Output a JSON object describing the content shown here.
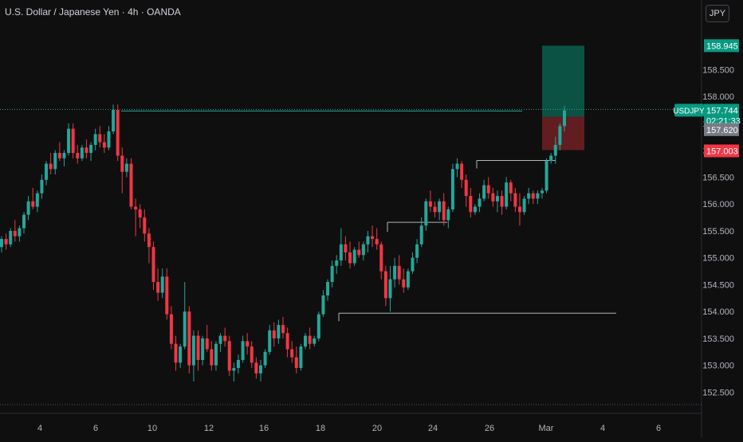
{
  "header": {
    "title": "U.S. Dollar / Japanese Yen · 4h · OANDA",
    "currency_button": "JPY"
  },
  "chart_data": {
    "type": "candlestick",
    "symbol": "USDJPY",
    "timeframe": "4h",
    "source": "OANDA",
    "x_tick_labels": [
      "4",
      "6",
      "10",
      "12",
      "16",
      "18",
      "20",
      "24",
      "26",
      "Mar",
      "4",
      "6"
    ],
    "y_tick_labels": [
      "158.500",
      "158.000",
      "157.500",
      "157.000",
      "156.500",
      "156.000",
      "155.500",
      "155.000",
      "154.500",
      "154.000",
      "153.500",
      "153.000",
      "152.500"
    ],
    "y_ticks": [
      158.5,
      158.0,
      157.5,
      157.0,
      156.5,
      156.0,
      155.5,
      155.0,
      154.5,
      154.0,
      153.5,
      153.0,
      152.5
    ],
    "ylim": [
      152.27,
      159.35
    ],
    "last_price": {
      "symbol": "USDJPY",
      "value": "157.744",
      "countdown": "02:21:33",
      "color": "#089981"
    },
    "price_labels": [
      {
        "value": "158.945",
        "color": "#089981",
        "role": "take-profit"
      },
      {
        "value": "157.620",
        "color": "#787b86",
        "role": "entry"
      },
      {
        "value": "157.003",
        "color": "#f23645",
        "role": "stop-loss"
      }
    ],
    "position_tool": {
      "entry": 157.62,
      "target": 158.945,
      "stop": 157.003,
      "profit_color": "#0b5a4a",
      "loss_color": "#6b1f24"
    },
    "horizontal_lines": [
      {
        "price": 157.76,
        "style": "dotted",
        "color": "#26a69a"
      },
      {
        "price": 157.73,
        "style": "solid",
        "color": "#26a69a"
      },
      {
        "price": 153.97,
        "style": "solid",
        "color": "#b2b5be"
      },
      {
        "price": 155.66,
        "style": "solid",
        "color": "#b2b5be"
      },
      {
        "price": 156.81,
        "style": "solid",
        "color": "#b2b5be"
      }
    ],
    "colors": {
      "up": "#26a69a",
      "down": "#f23645",
      "background": "#0f0f0f",
      "grid": "#1c1c1c"
    },
    "candles": [
      [
        155.2,
        155.4,
        155.1,
        155.35
      ],
      [
        155.35,
        155.45,
        155.15,
        155.25
      ],
      [
        155.25,
        155.55,
        155.2,
        155.5
      ],
      [
        155.5,
        155.7,
        155.3,
        155.4
      ],
      [
        155.4,
        155.6,
        155.3,
        155.55
      ],
      [
        155.55,
        155.85,
        155.45,
        155.8
      ],
      [
        155.8,
        156.15,
        155.7,
        156.05
      ],
      [
        156.05,
        156.3,
        155.9,
        155.95
      ],
      [
        155.95,
        156.25,
        155.85,
        156.2
      ],
      [
        156.2,
        156.55,
        156.1,
        156.45
      ],
      [
        156.45,
        156.8,
        156.35,
        156.75
      ],
      [
        156.75,
        156.95,
        156.55,
        156.65
      ],
      [
        156.65,
        157.0,
        156.55,
        156.95
      ],
      [
        156.95,
        157.15,
        156.8,
        156.85
      ],
      [
        156.85,
        157.0,
        156.7,
        156.95
      ],
      [
        156.95,
        157.5,
        156.9,
        157.4
      ],
      [
        157.4,
        157.5,
        156.85,
        156.95
      ],
      [
        156.95,
        157.1,
        156.75,
        156.85
      ],
      [
        156.85,
        157.1,
        156.8,
        157.05
      ],
      [
        157.05,
        157.2,
        156.85,
        156.95
      ],
      [
        156.95,
        157.15,
        156.8,
        157.1
      ],
      [
        157.1,
        157.4,
        157.0,
        157.3
      ],
      [
        157.3,
        157.45,
        157.05,
        157.15
      ],
      [
        157.15,
        157.3,
        156.95,
        157.05
      ],
      [
        157.05,
        157.45,
        157.0,
        157.35
      ],
      [
        157.35,
        157.85,
        157.3,
        157.75
      ],
      [
        157.75,
        157.85,
        156.8,
        156.9
      ],
      [
        156.9,
        157.05,
        156.2,
        156.6
      ],
      [
        156.6,
        156.85,
        156.5,
        156.75
      ],
      [
        156.75,
        156.85,
        155.9,
        155.95
      ],
      [
        155.95,
        156.1,
        155.4,
        155.9
      ],
      [
        155.9,
        156.0,
        155.55,
        155.75
      ],
      [
        155.75,
        155.9,
        155.3,
        155.45
      ],
      [
        155.45,
        155.55,
        154.9,
        155.2
      ],
      [
        155.2,
        155.3,
        154.4,
        154.55
      ],
      [
        154.55,
        154.8,
        154.2,
        154.35
      ],
      [
        154.35,
        154.8,
        154.25,
        154.65
      ],
      [
        154.65,
        154.8,
        153.85,
        153.95
      ],
      [
        153.95,
        154.1,
        153.3,
        153.4
      ],
      [
        153.4,
        153.55,
        152.9,
        153.05
      ],
      [
        153.05,
        153.4,
        152.95,
        153.35
      ],
      [
        153.35,
        154.55,
        153.3,
        154.0
      ],
      [
        154.0,
        154.1,
        152.85,
        153.0
      ],
      [
        153.0,
        153.65,
        152.7,
        153.55
      ],
      [
        153.55,
        153.65,
        152.9,
        153.1
      ],
      [
        153.1,
        153.55,
        153.0,
        153.5
      ],
      [
        153.5,
        153.75,
        153.25,
        153.3
      ],
      [
        153.3,
        153.45,
        152.9,
        153.0
      ],
      [
        153.0,
        153.45,
        152.9,
        153.4
      ],
      [
        153.4,
        153.6,
        153.25,
        153.55
      ],
      [
        153.55,
        153.7,
        153.35,
        153.45
      ],
      [
        153.45,
        153.55,
        152.8,
        152.9
      ],
      [
        152.9,
        153.05,
        152.7,
        152.95
      ],
      [
        152.95,
        153.2,
        152.85,
        153.1
      ],
      [
        153.1,
        153.55,
        153.05,
        153.45
      ],
      [
        153.45,
        153.6,
        153.2,
        153.35
      ],
      [
        153.35,
        153.45,
        152.95,
        153.05
      ],
      [
        153.05,
        153.15,
        152.75,
        152.85
      ],
      [
        152.85,
        153.1,
        152.7,
        153.0
      ],
      [
        153.0,
        153.3,
        152.95,
        153.25
      ],
      [
        153.25,
        153.75,
        153.2,
        153.65
      ],
      [
        153.65,
        153.8,
        153.35,
        153.5
      ],
      [
        153.5,
        153.85,
        153.4,
        153.75
      ],
      [
        153.75,
        153.9,
        153.5,
        153.6
      ],
      [
        153.6,
        153.7,
        153.15,
        153.3
      ],
      [
        153.3,
        153.45,
        153.05,
        153.15
      ],
      [
        153.15,
        153.35,
        152.85,
        152.95
      ],
      [
        152.95,
        153.4,
        152.9,
        153.35
      ],
      [
        153.35,
        153.6,
        153.3,
        153.55
      ],
      [
        153.55,
        153.7,
        153.3,
        153.4
      ],
      [
        153.4,
        153.55,
        153.35,
        153.5
      ],
      [
        153.5,
        154.0,
        153.45,
        153.95
      ],
      [
        153.95,
        154.4,
        153.9,
        154.3
      ],
      [
        154.3,
        154.6,
        154.2,
        154.55
      ],
      [
        154.55,
        154.95,
        154.45,
        154.85
      ],
      [
        154.85,
        155.05,
        154.7,
        154.95
      ],
      [
        154.95,
        155.55,
        154.85,
        155.25
      ],
      [
        155.25,
        155.4,
        154.95,
        155.1
      ],
      [
        155.1,
        155.3,
        154.8,
        154.9
      ],
      [
        154.9,
        155.2,
        154.85,
        155.15
      ],
      [
        155.15,
        155.3,
        155.0,
        155.05
      ],
      [
        155.05,
        155.3,
        154.95,
        155.25
      ],
      [
        155.25,
        155.5,
        155.1,
        155.4
      ],
      [
        155.4,
        155.6,
        155.2,
        155.35
      ],
      [
        155.35,
        155.55,
        155.15,
        155.25
      ],
      [
        155.25,
        155.3,
        154.6,
        154.75
      ],
      [
        154.75,
        154.85,
        154.1,
        154.25
      ],
      [
        154.25,
        154.85,
        154.0,
        154.6
      ],
      [
        154.6,
        155.0,
        154.45,
        154.85
      ],
      [
        154.85,
        155.05,
        154.5,
        154.6
      ],
      [
        154.6,
        154.8,
        154.35,
        154.45
      ],
      [
        154.45,
        154.8,
        154.4,
        154.75
      ],
      [
        154.75,
        155.1,
        154.7,
        155.0
      ],
      [
        155.0,
        155.35,
        154.9,
        155.25
      ],
      [
        155.25,
        155.75,
        155.2,
        155.6
      ],
      [
        155.6,
        156.1,
        155.5,
        156.05
      ],
      [
        156.05,
        156.25,
        155.85,
        155.95
      ],
      [
        155.95,
        156.05,
        155.75,
        155.85
      ],
      [
        155.85,
        156.1,
        155.7,
        156.05
      ],
      [
        156.05,
        156.2,
        155.6,
        155.7
      ],
      [
        155.7,
        155.95,
        155.55,
        155.9
      ],
      [
        155.9,
        156.75,
        155.85,
        156.65
      ],
      [
        156.65,
        156.85,
        156.5,
        156.75
      ],
      [
        156.75,
        156.8,
        156.3,
        156.45
      ],
      [
        156.45,
        156.55,
        155.95,
        156.15
      ],
      [
        156.15,
        156.3,
        155.75,
        155.85
      ],
      [
        155.85,
        156.0,
        155.8,
        155.95
      ],
      [
        155.95,
        156.2,
        155.85,
        156.1
      ],
      [
        156.1,
        156.45,
        156.05,
        156.35
      ],
      [
        156.35,
        156.5,
        156.1,
        156.2
      ],
      [
        156.2,
        156.3,
        155.95,
        156.05
      ],
      [
        156.05,
        156.25,
        155.85,
        156.15
      ],
      [
        156.15,
        156.25,
        155.8,
        155.95
      ],
      [
        155.95,
        156.5,
        155.9,
        156.4
      ],
      [
        156.4,
        156.45,
        156.05,
        156.2
      ],
      [
        156.2,
        156.3,
        155.85,
        155.95
      ],
      [
        155.95,
        156.2,
        155.6,
        155.85
      ],
      [
        155.85,
        156.15,
        155.8,
        156.1
      ],
      [
        156.1,
        156.3,
        156.0,
        156.2
      ],
      [
        156.2,
        156.25,
        156.0,
        156.1
      ],
      [
        156.1,
        156.25,
        156.0,
        156.2
      ],
      [
        156.2,
        156.3,
        156.1,
        156.25
      ],
      [
        156.25,
        156.85,
        156.2,
        156.8
      ],
      [
        156.8,
        156.95,
        156.75,
        156.9
      ],
      [
        156.9,
        157.25,
        156.75,
        157.1
      ],
      [
        157.1,
        157.5,
        157.0,
        157.45
      ],
      [
        157.45,
        157.82,
        157.35,
        157.74
      ]
    ]
  }
}
